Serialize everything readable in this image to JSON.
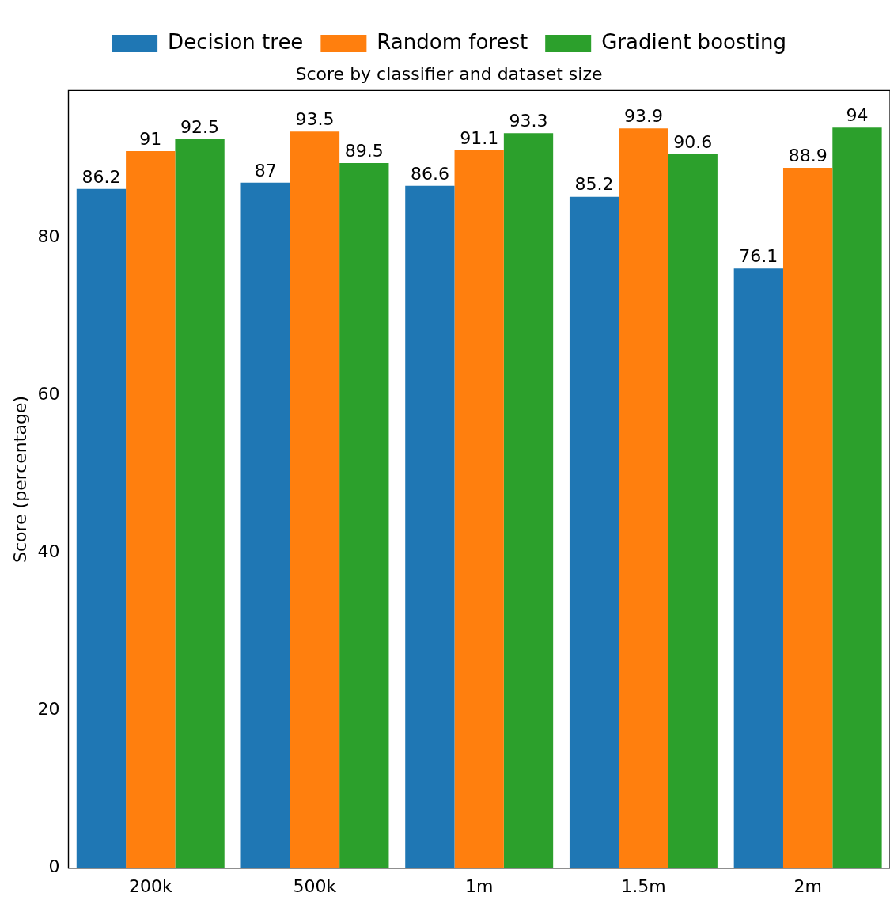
{
  "chart_data": {
    "type": "bar",
    "title": "Score by classifier and dataset size",
    "ylabel": "Score (percentage)",
    "categories": [
      "200k",
      "500k",
      "1m",
      "1.5m",
      "2m"
    ],
    "series": [
      {
        "name": "Decision tree",
        "color": "#1f77b4",
        "values": [
          86.2,
          87,
          86.6,
          85.2,
          76.1
        ]
      },
      {
        "name": "Random forest",
        "color": "#ff7f0e",
        "values": [
          91,
          93.5,
          91.1,
          93.9,
          88.9
        ]
      },
      {
        "name": "Gradient boosting",
        "color": "#2ca02c",
        "values": [
          92.5,
          89.5,
          93.3,
          90.6,
          94
        ]
      }
    ],
    "ylim": [
      0,
      98.7
    ],
    "yticks": [
      0,
      20,
      40,
      60,
      80
    ],
    "grid": false,
    "legend": "top",
    "data_labels": true
  }
}
